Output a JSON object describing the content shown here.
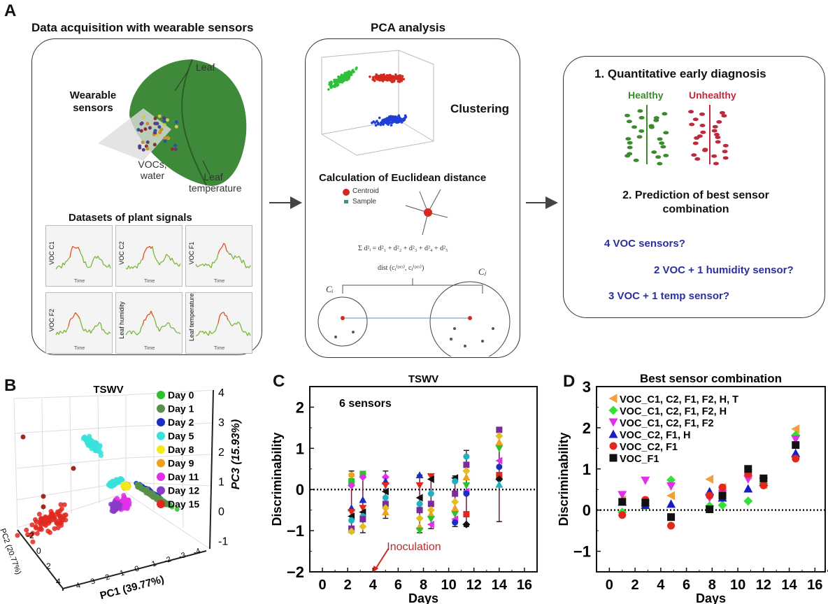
{
  "panel_a": {
    "label": "A",
    "acquisition": {
      "title": "Data acquisition with wearable sensors",
      "leaf_label": "Leaf",
      "sensor_label": "Wearable sensors",
      "vocs_label": "VOCs, water",
      "temp_label": "Leaf temperature",
      "datasets_title": "Datasets of plant signals",
      "signals": [
        "VOC C1",
        "VOC C2",
        "VOC F1",
        "VOC F2",
        "Leaf humidity",
        "Leaf temperature"
      ],
      "time_label": "Time"
    },
    "pca": {
      "title": "PCA analysis",
      "clustering_label": "Clustering",
      "euclid_title": "Calculation of Euclidean distance",
      "legend": [
        "Centroid",
        "Sample"
      ],
      "formula": "Σ d²ᵢ = d²₁ + d²₂ + d²₃ + d²₄ + d²₅",
      "dist_formula": "dist (cᵢ⁽ᵖᶜˢ⁾, cⱼ⁽ᵖᶜˢ⁾)",
      "cluster_i": "Cᵢ",
      "cluster_j": "Cⱼ",
      "colors": {
        "green": "#2fbf3a",
        "red": "#d42a1e",
        "blue": "#1f3fd6"
      }
    },
    "outcome": {
      "diagnosis_title": "1. Quantitative early diagnosis",
      "healthy": "Healthy",
      "unhealthy": "Unhealthy",
      "prediction_title_1": "2. Prediction of best sensor",
      "prediction_title_2": "combination",
      "questions": [
        "4 VOC sensors?",
        "2 VOC + 1 humidity sensor?",
        "3 VOC + 1 temp sensor?"
      ],
      "healthy_color": "#3c8a2e",
      "unhealthy_color": "#c0283c"
    }
  },
  "panel_b": {
    "label": "B",
    "chart_data": {
      "type": "scatter3d",
      "title": "TSWV",
      "xlabel": "PC1 (39.77%)",
      "ylabel": "PC2 (20.77%)",
      "zlabel": "PC3 (15.93%)",
      "z_ticks": [
        "4",
        "3",
        "2",
        "1",
        "0",
        "-1"
      ],
      "x_ticks": [
        "4",
        "3",
        "2",
        "1",
        "0",
        "-1",
        "-2",
        "-3",
        "-4"
      ],
      "y_ticks": [
        "-2",
        "0",
        "2",
        "4"
      ],
      "legend_position": "top-right",
      "series": [
        {
          "name": "Day 0",
          "color": "#2ec02e"
        },
        {
          "name": "Day 1",
          "color": "#5a8f4a"
        },
        {
          "name": "Day 2",
          "color": "#1a2fc0"
        },
        {
          "name": "Day 5",
          "color": "#39e0dc"
        },
        {
          "name": "Day 8",
          "color": "#f2ea1a"
        },
        {
          "name": "Day 9",
          "color": "#f0a020"
        },
        {
          "name": "Day 11",
          "color": "#e030e8"
        },
        {
          "name": "Day 12",
          "color": "#8a3cc8"
        },
        {
          "name": "Day 15",
          "color": "#e0281e"
        }
      ]
    }
  },
  "panel_c": {
    "label": "C",
    "chart_data": {
      "type": "scatter",
      "title": "TSWV",
      "annotation": "6 sensors",
      "inoculation_label": "Inoculation",
      "inoculation_day": 4,
      "xlabel": "Days",
      "ylabel": "Discriminability",
      "xlim": [
        -1,
        17
      ],
      "ylim": [
        -2,
        2.5
      ],
      "xticks": [
        0,
        2,
        4,
        6,
        8,
        10,
        12,
        14,
        16
      ],
      "yticks": [
        -2,
        -1,
        0,
        1,
        2
      ],
      "reference_line": 0,
      "groups": [
        {
          "x": 2.3,
          "low": -1.05,
          "high": 0.45,
          "points": [
            0.35,
            0.2,
            0.1,
            -0.45,
            -0.55,
            -0.65,
            -0.75,
            -0.95,
            -1.02
          ]
        },
        {
          "x": 3.2,
          "low": -1.05,
          "high": 0.42,
          "points": [
            0.38,
            0.3,
            -0.25,
            -0.45,
            -0.55,
            -0.65,
            -0.72,
            -0.9
          ]
        },
        {
          "x": 5.0,
          "low": -0.7,
          "high": 0.45,
          "points": [
            0.3,
            0.2,
            0.1,
            -0.05,
            -0.2,
            -0.35,
            -0.45,
            -0.55
          ]
        },
        {
          "x": 7.7,
          "low": -1.05,
          "high": 0.35,
          "points": [
            0.35,
            0.1,
            -0.2,
            -0.35,
            -0.5,
            -0.7,
            -0.9,
            -1.0
          ]
        },
        {
          "x": 8.6,
          "low": -0.95,
          "high": 0.35,
          "points": [
            0.32,
            0.25,
            -0.1,
            -0.35,
            -0.5,
            -0.6,
            -0.72,
            -0.85
          ]
        },
        {
          "x": 10.5,
          "low": -0.9,
          "high": 0.33,
          "points": [
            0.28,
            0.2,
            -0.1,
            -0.3,
            -0.45,
            -0.6,
            -0.72,
            -0.8
          ]
        },
        {
          "x": 11.4,
          "low": -0.9,
          "high": 0.95,
          "points": [
            0.8,
            0.6,
            0.45,
            0.3,
            0.1,
            -0.05,
            -0.1,
            -0.6,
            -0.85
          ]
        },
        {
          "x": 14.0,
          "low": -0.78,
          "high": 1.5,
          "points": [
            1.45,
            1.3,
            1.15,
            1.0,
            0.7,
            0.55,
            0.35,
            0.25,
            0.12
          ]
        }
      ],
      "palette": [
        "#f0a020",
        "#2ec02e",
        "#e030e8",
        "#1a2fc0",
        "#e0281e",
        "#111111",
        "#20b0c0",
        "#7a2c9a",
        "#e0c020"
      ]
    }
  },
  "panel_d": {
    "label": "D",
    "chart_data": {
      "type": "scatter",
      "title": "Best sensor combination",
      "xlabel": "Days",
      "ylabel": "Discriminability",
      "xlim": [
        -1,
        16.8
      ],
      "ylim": [
        -1.5,
        3
      ],
      "xticks": [
        0,
        2,
        4,
        6,
        8,
        10,
        12,
        14,
        16
      ],
      "yticks": [
        -1,
        0,
        1,
        2,
        3
      ],
      "reference_line": 0,
      "legend_position": "top-left",
      "x": [
        1,
        2.8,
        4.8,
        7.8,
        8.8,
        10.8,
        12,
        14.5
      ],
      "series": [
        {
          "name": "VOC_C1, C2, F1, F2, H, T",
          "marker": "triangle-left",
          "color": "#f0a040",
          "values": [
            0.25,
            0.15,
            0.35,
            0.75,
            0.55,
            0.85,
            0.62,
            1.97
          ]
        },
        {
          "name": "VOC_C1, C2, F1, F2, H",
          "marker": "diamond",
          "color": "#33e033",
          "values": [
            -0.05,
            0.1,
            0.73,
            0.1,
            0.12,
            0.22,
            0.65,
            1.82
          ]
        },
        {
          "name": "VOC_C1, C2, F1, F2",
          "marker": "triangle-down",
          "color": "#e030e8",
          "values": [
            0.37,
            0.72,
            0.58,
            0.3,
            0.4,
            0.75,
            0.7,
            1.72
          ]
        },
        {
          "name": "VOC_C2, F1, H",
          "marker": "triangle-up",
          "color": "#1a1ac8",
          "values": [
            0.2,
            0.12,
            0.15,
            0.45,
            0.3,
            0.52,
            0.68,
            1.38
          ]
        },
        {
          "name": "VOC_C2, F1",
          "marker": "circle",
          "color": "#e0281e",
          "values": [
            -0.12,
            0.25,
            -0.38,
            0.35,
            0.55,
            0.88,
            0.6,
            1.25
          ]
        },
        {
          "name": "VOC_F1",
          "marker": "square",
          "color": "#111111",
          "values": [
            0.2,
            0.18,
            -0.17,
            0.02,
            0.35,
            1.0,
            0.77,
            1.58
          ]
        }
      ]
    }
  }
}
